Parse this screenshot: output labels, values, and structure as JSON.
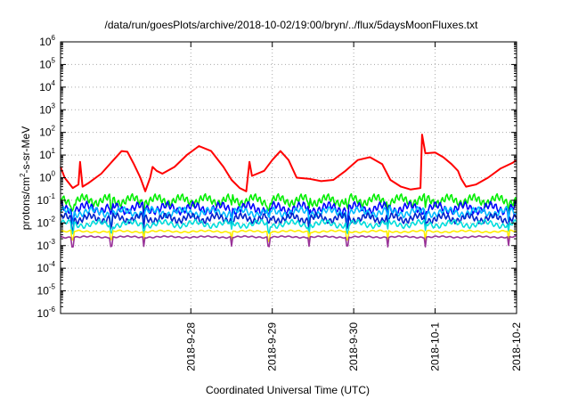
{
  "chart_data": {
    "type": "line",
    "title": "/data/run/goesPlots/archive/2018-10-02/19:00/bryn/../flux/5daysMoonFluxes.txt",
    "xlabel": "Coordinated Universal Time (UTC)",
    "ylabel_parts": [
      "protons/cm",
      "2",
      "-s-sr-MeV"
    ],
    "y_scale": "log",
    "ylim": [
      1e-06,
      1000000.0
    ],
    "y_tick_exponents": [
      -6,
      -5,
      -4,
      -3,
      -2,
      -1,
      0,
      1,
      2,
      3,
      4,
      5,
      6
    ],
    "y_tick_base": "10",
    "x_range_days": [
      -2.6,
      3.0
    ],
    "x_ticks": [
      {
        "label": "2018-9-28",
        "day": 0
      },
      {
        "label": "2018-9-29",
        "day": 1
      },
      {
        "label": "2018-9-30",
        "day": 2
      },
      {
        "label": "2018-10-1",
        "day": 3
      },
      {
        "label": "2018-10-2",
        "day": 4
      }
    ],
    "x_tick_day_offset": -1.0,
    "grid": true,
    "legend": "none",
    "series": [
      {
        "color": "#ff0000",
        "points": [
          [
            -2.6,
            3
          ],
          [
            -2.55,
            1.0
          ],
          [
            -2.45,
            0.35
          ],
          [
            -2.38,
            0.5
          ],
          [
            -2.36,
            5
          ],
          [
            -2.33,
            0.4
          ],
          [
            -2.25,
            0.6
          ],
          [
            -2.1,
            1.5
          ],
          [
            -1.95,
            6
          ],
          [
            -1.85,
            15
          ],
          [
            -1.78,
            14
          ],
          [
            -1.7,
            4
          ],
          [
            -1.62,
            1.0
          ],
          [
            -1.56,
            0.25
          ],
          [
            -1.5,
            1.0
          ],
          [
            -1.47,
            3
          ],
          [
            -1.42,
            2
          ],
          [
            -1.35,
            1.5
          ],
          [
            -1.2,
            3
          ],
          [
            -1.05,
            10
          ],
          [
            -0.9,
            25
          ],
          [
            -0.75,
            15
          ],
          [
            -0.6,
            3
          ],
          [
            -0.5,
            0.8
          ],
          [
            -0.4,
            0.35
          ],
          [
            -0.32,
            0.25
          ],
          [
            -0.28,
            5
          ],
          [
            -0.25,
            1.2
          ],
          [
            -0.1,
            2
          ],
          [
            0.0,
            6
          ],
          [
            0.1,
            15
          ],
          [
            0.2,
            6
          ],
          [
            0.3,
            1.0
          ],
          [
            0.45,
            0.9
          ],
          [
            0.6,
            0.7
          ],
          [
            0.75,
            0.8
          ],
          [
            0.9,
            2
          ],
          [
            1.05,
            6
          ],
          [
            1.2,
            8
          ],
          [
            1.35,
            4
          ],
          [
            1.45,
            0.8
          ],
          [
            1.58,
            0.4
          ],
          [
            1.7,
            0.3
          ],
          [
            1.82,
            0.35
          ],
          [
            1.84,
            80
          ],
          [
            1.88,
            12
          ],
          [
            2.0,
            13
          ],
          [
            2.1,
            8
          ],
          [
            2.2,
            4
          ],
          [
            2.28,
            2
          ],
          [
            2.32,
            0.9
          ],
          [
            2.38,
            0.4
          ],
          [
            2.5,
            0.5
          ],
          [
            2.65,
            1.0
          ],
          [
            2.8,
            2.5
          ],
          [
            2.95,
            4.5
          ],
          [
            3.0,
            6
          ]
        ]
      },
      {
        "color": "#00ee00",
        "base": 0.1,
        "amp": 0.3,
        "period": 0.028
      },
      {
        "color": "#0000ff",
        "base": 0.045,
        "amp": 0.3,
        "period": 0.031
      },
      {
        "color": "#00bbff",
        "base": 0.03,
        "amp": 0.25,
        "period": 0.034
      },
      {
        "color": "#0022cc",
        "base": 0.016,
        "amp": 0.25,
        "period": 0.029
      },
      {
        "color": "#00dddd",
        "base": 0.009,
        "amp": 0.2,
        "period": 0.037
      },
      {
        "color": "#ffee00",
        "base": 0.0042,
        "amp": 0.06,
        "period": 0.05
      },
      {
        "color": "#993399",
        "base": 0.0024,
        "amp": 0.05,
        "period": 0.045
      }
    ],
    "dips_days": [
      -2.45,
      -1.98,
      -1.58,
      -0.5,
      -0.05,
      0.45,
      0.92,
      1.42,
      1.88,
      2.9
    ]
  }
}
